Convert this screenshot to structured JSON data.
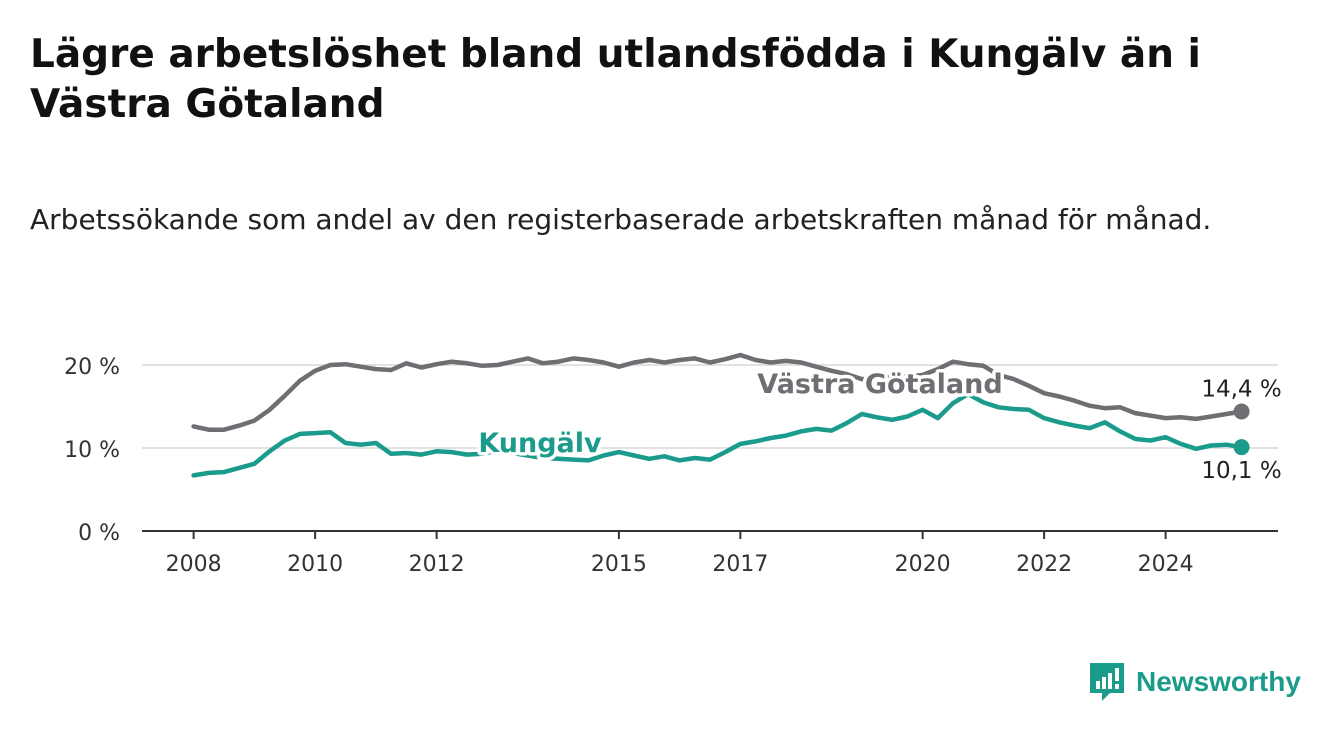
{
  "header": {
    "title": "Lägre arbetslöshet bland utlandsfödda i Kungälv än i Västra Götaland",
    "subtitle": "Arbetssökande som andel av den registerbaserade arbetskraften månad för månad."
  },
  "brand": {
    "name": "Newsworthy",
    "color": "#1a9b8c"
  },
  "chart_data": {
    "type": "line",
    "x_unit": "year",
    "x_ticks": [
      2008,
      2010,
      2012,
      2015,
      2017,
      2020,
      2022,
      2024
    ],
    "x_tick_labels": [
      "2008",
      "2010",
      "2012",
      "2015",
      "2017",
      "2020",
      "2022",
      "2024"
    ],
    "xlim": [
      2007.15,
      2025.85
    ],
    "ylim": [
      0,
      20
    ],
    "y_ticks": [
      0,
      10,
      20
    ],
    "y_tick_labels": [
      "0 %",
      "10 %",
      "20 %"
    ],
    "grid": true,
    "series": [
      {
        "name": "Västra Götaland",
        "color": "#6e6e73",
        "end_label": "14,4 %",
        "points": [
          [
            2008.0,
            12.6
          ],
          [
            2008.25,
            12.2
          ],
          [
            2008.5,
            12.2
          ],
          [
            2008.75,
            12.7
          ],
          [
            2009.0,
            13.3
          ],
          [
            2009.25,
            14.6
          ],
          [
            2009.5,
            16.3
          ],
          [
            2009.75,
            18.1
          ],
          [
            2010.0,
            19.3
          ],
          [
            2010.25,
            20.0
          ],
          [
            2010.5,
            20.1
          ],
          [
            2010.75,
            19.8
          ],
          [
            2011.0,
            19.5
          ],
          [
            2011.25,
            19.4
          ],
          [
            2011.5,
            20.2
          ],
          [
            2011.75,
            19.7
          ],
          [
            2012.0,
            20.1
          ],
          [
            2012.25,
            20.4
          ],
          [
            2012.5,
            20.2
          ],
          [
            2012.75,
            19.9
          ],
          [
            2013.0,
            20.0
          ],
          [
            2013.25,
            20.4
          ],
          [
            2013.5,
            20.8
          ],
          [
            2013.75,
            20.2
          ],
          [
            2014.0,
            20.4
          ],
          [
            2014.25,
            20.8
          ],
          [
            2014.5,
            20.6
          ],
          [
            2014.75,
            20.3
          ],
          [
            2015.0,
            19.8
          ],
          [
            2015.25,
            20.3
          ],
          [
            2015.5,
            20.6
          ],
          [
            2015.75,
            20.3
          ],
          [
            2016.0,
            20.6
          ],
          [
            2016.25,
            20.8
          ],
          [
            2016.5,
            20.3
          ],
          [
            2016.75,
            20.7
          ],
          [
            2017.0,
            21.2
          ],
          [
            2017.25,
            20.6
          ],
          [
            2017.5,
            20.3
          ],
          [
            2017.75,
            20.5
          ],
          [
            2018.0,
            20.3
          ],
          [
            2018.25,
            19.8
          ],
          [
            2018.5,
            19.3
          ],
          [
            2018.75,
            18.9
          ],
          [
            2019.0,
            18.3
          ],
          [
            2019.25,
            18.4
          ],
          [
            2019.5,
            18.6
          ],
          [
            2019.75,
            18.6
          ],
          [
            2020.0,
            18.8
          ],
          [
            2020.25,
            19.5
          ],
          [
            2020.5,
            20.4
          ],
          [
            2020.75,
            20.1
          ],
          [
            2021.0,
            19.9
          ],
          [
            2021.25,
            18.8
          ],
          [
            2021.5,
            18.3
          ],
          [
            2021.75,
            17.5
          ],
          [
            2022.0,
            16.6
          ],
          [
            2022.25,
            16.2
          ],
          [
            2022.5,
            15.7
          ],
          [
            2022.75,
            15.1
          ],
          [
            2023.0,
            14.8
          ],
          [
            2023.25,
            14.9
          ],
          [
            2023.5,
            14.2
          ],
          [
            2023.75,
            13.9
          ],
          [
            2024.0,
            13.6
          ],
          [
            2024.25,
            13.7
          ],
          [
            2024.5,
            13.5
          ],
          [
            2024.75,
            13.8
          ],
          [
            2025.0,
            14.1
          ],
          [
            2025.25,
            14.4
          ]
        ]
      },
      {
        "name": "Kungälv",
        "color": "#1a9b8c",
        "end_label": "10,1 %",
        "points": [
          [
            2008.0,
            6.7
          ],
          [
            2008.25,
            7.0
          ],
          [
            2008.5,
            7.1
          ],
          [
            2008.75,
            7.6
          ],
          [
            2009.0,
            8.1
          ],
          [
            2009.25,
            9.6
          ],
          [
            2009.5,
            10.9
          ],
          [
            2009.75,
            11.7
          ],
          [
            2010.0,
            11.8
          ],
          [
            2010.25,
            11.9
          ],
          [
            2010.5,
            10.6
          ],
          [
            2010.75,
            10.4
          ],
          [
            2011.0,
            10.6
          ],
          [
            2011.25,
            9.3
          ],
          [
            2011.5,
            9.4
          ],
          [
            2011.75,
            9.2
          ],
          [
            2012.0,
            9.6
          ],
          [
            2012.25,
            9.5
          ],
          [
            2012.5,
            9.2
          ],
          [
            2012.75,
            9.3
          ],
          [
            2013.0,
            9.7
          ],
          [
            2013.25,
            9.4
          ],
          [
            2013.5,
            9.1
          ],
          [
            2013.75,
            8.8
          ],
          [
            2014.0,
            8.7
          ],
          [
            2014.25,
            8.6
          ],
          [
            2014.5,
            8.5
          ],
          [
            2014.75,
            9.1
          ],
          [
            2015.0,
            9.5
          ],
          [
            2015.25,
            9.1
          ],
          [
            2015.5,
            8.7
          ],
          [
            2015.75,
            9.0
          ],
          [
            2016.0,
            8.5
          ],
          [
            2016.25,
            8.8
          ],
          [
            2016.5,
            8.6
          ],
          [
            2016.75,
            9.5
          ],
          [
            2017.0,
            10.5
          ],
          [
            2017.25,
            10.8
          ],
          [
            2017.5,
            11.2
          ],
          [
            2017.75,
            11.5
          ],
          [
            2018.0,
            12.0
          ],
          [
            2018.25,
            12.3
          ],
          [
            2018.5,
            12.1
          ],
          [
            2018.75,
            13.0
          ],
          [
            2019.0,
            14.1
          ],
          [
            2019.25,
            13.7
          ],
          [
            2019.5,
            13.4
          ],
          [
            2019.75,
            13.8
          ],
          [
            2020.0,
            14.6
          ],
          [
            2020.25,
            13.6
          ],
          [
            2020.5,
            15.4
          ],
          [
            2020.75,
            16.5
          ],
          [
            2021.0,
            15.5
          ],
          [
            2021.25,
            14.9
          ],
          [
            2021.5,
            14.7
          ],
          [
            2021.75,
            14.6
          ],
          [
            2022.0,
            13.6
          ],
          [
            2022.25,
            13.1
          ],
          [
            2022.5,
            12.7
          ],
          [
            2022.75,
            12.4
          ],
          [
            2023.0,
            13.1
          ],
          [
            2023.25,
            12.0
          ],
          [
            2023.5,
            11.1
          ],
          [
            2023.75,
            10.9
          ],
          [
            2024.0,
            11.3
          ],
          [
            2024.25,
            10.5
          ],
          [
            2024.5,
            9.9
          ],
          [
            2024.75,
            10.3
          ],
          [
            2025.0,
            10.4
          ],
          [
            2025.25,
            10.1
          ]
        ]
      }
    ]
  }
}
